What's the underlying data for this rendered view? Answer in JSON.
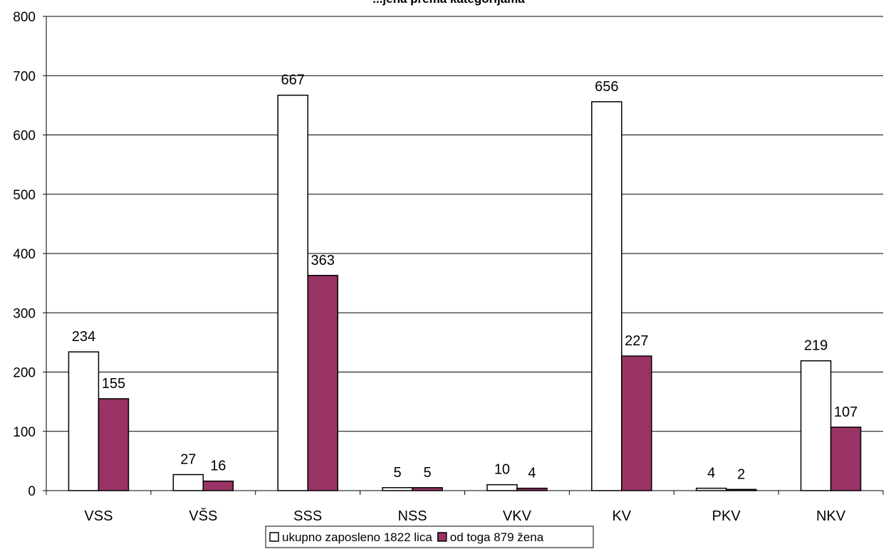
{
  "chart_data": {
    "type": "bar",
    "title": "...jena prema kategorijama",
    "categories": [
      "VSS",
      "VŠS",
      "SSS",
      "NSS",
      "VKV",
      "KV",
      "PKV",
      "NKV"
    ],
    "series": [
      {
        "name": "ukupno zaposleno 1822 lica",
        "color": "#ffffff",
        "values": [
          234,
          27,
          667,
          5,
          10,
          656,
          4,
          219
        ]
      },
      {
        "name": "od toga 879 žena",
        "color": "#993366",
        "values": [
          155,
          16,
          363,
          5,
          4,
          227,
          2,
          107
        ]
      }
    ],
    "ylim": [
      0,
      800
    ],
    "yticks": [
      0,
      100,
      200,
      300,
      400,
      500,
      600,
      700,
      800
    ],
    "grid": true,
    "legend_position": "bottom-center",
    "xlabel": "",
    "ylabel": ""
  }
}
